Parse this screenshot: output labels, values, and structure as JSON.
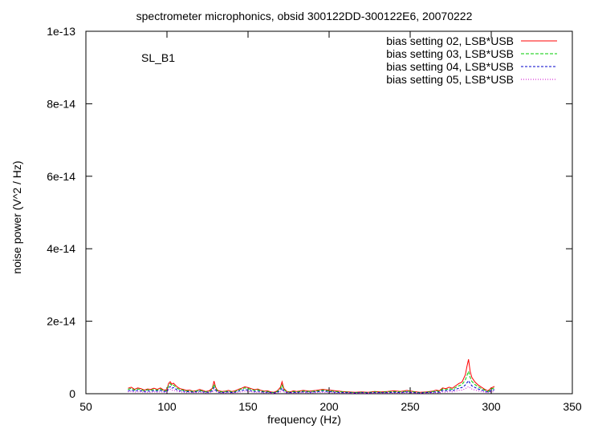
{
  "chart_data": {
    "type": "line",
    "title": "spectrometer microphonics, obsid 300122DD-300122E6, 20070222",
    "annotation": "SL_B1",
    "xlabel": "frequency (Hz)",
    "ylabel": "noise power (V^2 / Hz)",
    "xlim": [
      50,
      350
    ],
    "ylim": [
      0,
      1e-13
    ],
    "x_ticks": [
      50,
      100,
      150,
      200,
      250,
      300,
      350
    ],
    "x_tick_labels": [
      "50",
      "100",
      "150",
      "200",
      "250",
      "300",
      "350"
    ],
    "y_ticks": [
      0,
      2e-14,
      4e-14,
      6e-14,
      8e-14,
      1e-13
    ],
    "y_tick_labels": [
      "0",
      "2e-14",
      "4e-14",
      "6e-14",
      "8e-14",
      "1e-13"
    ],
    "grid": false,
    "legend_position": "top-right",
    "series": [
      {
        "name": "bias setting 02, LSB*USB",
        "color": "#ff0000",
        "x": [
          76,
          78,
          80,
          82,
          84,
          86,
          88,
          90,
          92,
          94,
          96,
          98,
          100,
          101,
          102,
          103,
          104,
          106,
          108,
          110,
          112,
          114,
          116,
          118,
          120,
          122,
          124,
          126,
          128,
          129,
          130,
          131,
          132,
          134,
          136,
          138,
          140,
          142,
          144,
          146,
          148,
          150,
          152,
          154,
          156,
          158,
          160,
          162,
          164,
          166,
          168,
          170,
          171,
          172,
          174,
          176,
          178,
          180,
          184,
          188,
          192,
          196,
          200,
          204,
          208,
          212,
          216,
          220,
          224,
          228,
          232,
          236,
          240,
          244,
          248,
          252,
          256,
          260,
          264,
          266,
          268,
          270,
          272,
          274,
          276,
          278,
          280,
          282,
          284,
          285,
          286,
          287,
          288,
          290,
          292,
          294,
          296,
          298,
          300,
          302
        ],
        "y": [
          1.5e-15,
          1.8e-15,
          1.2e-15,
          1.6e-15,
          1.4e-15,
          1e-15,
          1.3e-15,
          1.2e-15,
          1.5e-15,
          1.2e-15,
          1.6e-15,
          1e-15,
          1.1e-15,
          2.8e-15,
          3.3e-15,
          2.6e-15,
          2.9e-15,
          2e-15,
          1.4e-15,
          1.2e-15,
          9e-16,
          1e-15,
          7e-16,
          8e-16,
          1.2e-15,
          9e-16,
          6e-16,
          8e-16,
          1.5e-15,
          3.5e-15,
          1.8e-15,
          1e-15,
          8e-16,
          6e-16,
          7e-16,
          9e-16,
          6e-16,
          8e-16,
          1.2e-15,
          1.5e-15,
          1.9e-15,
          1.7e-15,
          1.4e-15,
          1.1e-15,
          1.3e-15,
          9e-16,
          7e-16,
          8e-16,
          5e-16,
          4e-16,
          8e-16,
          1.8e-15,
          3.3e-15,
          1.5e-15,
          6e-16,
          5e-16,
          8e-16,
          6e-16,
          9e-16,
          7e-16,
          9e-16,
          1.2e-15,
          1e-15,
          8e-16,
          6e-16,
          5e-16,
          4e-16,
          5e-16,
          4e-16,
          6e-16,
          5e-16,
          6e-16,
          8e-16,
          6e-16,
          9e-16,
          6e-16,
          4e-16,
          5e-16,
          7e-16,
          1e-15,
          8e-16,
          1.6e-15,
          1.4e-15,
          1.8e-15,
          1.5e-15,
          2.2e-15,
          2.8e-15,
          3.2e-15,
          5.2e-15,
          7.5e-15,
          9.5e-15,
          6.2e-15,
          4.5e-15,
          3.2e-15,
          2.4e-15,
          1.8e-15,
          1.2e-15,
          8e-16,
          1.6e-15,
          2e-15
        ]
      },
      {
        "name": "bias setting 03, LSB*USB",
        "color": "#00cc00",
        "x": [
          76,
          78,
          80,
          82,
          84,
          86,
          88,
          90,
          92,
          94,
          96,
          98,
          100,
          101,
          102,
          103,
          104,
          106,
          108,
          110,
          112,
          114,
          116,
          118,
          120,
          122,
          124,
          126,
          128,
          129,
          130,
          131,
          132,
          134,
          136,
          138,
          140,
          142,
          144,
          146,
          148,
          150,
          152,
          154,
          156,
          158,
          160,
          162,
          164,
          166,
          168,
          170,
          171,
          172,
          174,
          176,
          178,
          180,
          184,
          188,
          192,
          196,
          200,
          204,
          208,
          212,
          216,
          220,
          224,
          228,
          232,
          236,
          240,
          244,
          248,
          252,
          256,
          260,
          264,
          266,
          268,
          270,
          272,
          274,
          276,
          278,
          280,
          282,
          284,
          285,
          286,
          287,
          288,
          290,
          292,
          294,
          296,
          298,
          300,
          302
        ],
        "y": [
          1.2e-15,
          1.5e-15,
          1e-15,
          1.3e-15,
          1.2e-15,
          8e-16,
          1.1e-15,
          1e-15,
          1.2e-15,
          1e-15,
          1.3e-15,
          8e-16,
          9e-16,
          2.3e-15,
          2.8e-15,
          2.2e-15,
          2.4e-15,
          1.6e-15,
          1.1e-15,
          1e-15,
          7e-16,
          8e-16,
          6e-16,
          7e-16,
          1e-15,
          7e-16,
          5e-16,
          6e-16,
          1.2e-15,
          2.6e-15,
          1.5e-15,
          8e-16,
          6e-16,
          5e-16,
          6e-16,
          7e-16,
          5e-16,
          6e-16,
          1e-15,
          1.3e-15,
          1.6e-15,
          1.4e-15,
          1.2e-15,
          9e-16,
          1.1e-15,
          7e-16,
          6e-16,
          6e-16,
          4e-16,
          3e-16,
          6e-16,
          1.4e-15,
          2.4e-15,
          1.2e-15,
          5e-16,
          4e-16,
          6e-16,
          5e-16,
          7e-16,
          6e-16,
          7e-16,
          1e-15,
          8e-16,
          6e-16,
          5e-16,
          4e-16,
          3e-16,
          4e-16,
          3e-16,
          5e-16,
          4e-16,
          5e-16,
          6e-16,
          5e-16,
          7e-16,
          5e-16,
          3e-16,
          4e-16,
          6e-16,
          8e-16,
          6e-16,
          1.3e-15,
          1.1e-15,
          1.4e-15,
          1.2e-15,
          1.7e-15,
          2.2e-15,
          2.5e-15,
          3.8e-15,
          5e-15,
          6.2e-15,
          4.5e-15,
          3.4e-15,
          2.5e-15,
          1.9e-15,
          1.4e-15,
          1e-15,
          6e-16,
          1.3e-15,
          1.6e-15
        ]
      },
      {
        "name": "bias setting 04, LSB*USB",
        "color": "#0000cc",
        "x": [
          76,
          78,
          80,
          82,
          84,
          86,
          88,
          90,
          92,
          94,
          96,
          98,
          100,
          101,
          102,
          103,
          104,
          106,
          108,
          110,
          112,
          114,
          116,
          118,
          120,
          122,
          124,
          126,
          128,
          129,
          130,
          131,
          132,
          134,
          136,
          138,
          140,
          142,
          144,
          146,
          148,
          150,
          152,
          154,
          156,
          158,
          160,
          162,
          164,
          166,
          168,
          170,
          171,
          172,
          174,
          176,
          178,
          180,
          184,
          188,
          192,
          196,
          200,
          204,
          208,
          212,
          216,
          220,
          224,
          228,
          232,
          236,
          240,
          244,
          248,
          252,
          256,
          260,
          264,
          266,
          268,
          270,
          272,
          274,
          276,
          278,
          280,
          282,
          284,
          285,
          286,
          287,
          288,
          290,
          292,
          294,
          296,
          298,
          300,
          302
        ],
        "y": [
          8e-16,
          1e-15,
          7e-16,
          9e-16,
          8e-16,
          6e-16,
          7e-16,
          7e-16,
          8e-16,
          7e-16,
          9e-16,
          6e-16,
          6e-16,
          1.6e-15,
          2e-15,
          1.5e-15,
          1.7e-15,
          1.1e-15,
          8e-16,
          7e-16,
          5e-16,
          6e-16,
          4e-16,
          5e-16,
          7e-16,
          5e-16,
          4e-16,
          4e-16,
          8e-16,
          1.7e-15,
          1e-15,
          6e-16,
          4e-16,
          3e-16,
          4e-16,
          5e-16,
          3e-16,
          4e-16,
          7e-16,
          9e-16,
          1.1e-15,
          1e-15,
          8e-16,
          6e-16,
          7e-16,
          5e-16,
          4e-16,
          4e-16,
          3e-16,
          2e-16,
          4e-16,
          9e-16,
          1.6e-15,
          8e-16,
          3e-16,
          3e-16,
          4e-16,
          3e-16,
          5e-16,
          4e-16,
          5e-16,
          7e-16,
          6e-16,
          4e-16,
          3e-16,
          3e-16,
          2e-16,
          3e-16,
          2e-16,
          3e-16,
          3e-16,
          3e-16,
          4e-16,
          3e-16,
          5e-16,
          3e-16,
          2e-16,
          3e-16,
          4e-16,
          5e-16,
          4e-16,
          9e-16,
          8e-16,
          1e-15,
          8e-16,
          1.2e-15,
          1.5e-15,
          1.7e-15,
          2.4e-15,
          3e-15,
          3.6e-15,
          2.8e-15,
          2.2e-15,
          1.7e-15,
          1.3e-15,
          1e-15,
          7e-16,
          4e-16,
          9e-16,
          1.1e-15
        ]
      },
      {
        "name": "bias setting 05, LSB*USB",
        "color": "#cc00cc",
        "x": [
          76,
          78,
          80,
          82,
          84,
          86,
          88,
          90,
          92,
          94,
          96,
          98,
          100,
          101,
          102,
          103,
          104,
          106,
          108,
          110,
          112,
          114,
          116,
          118,
          120,
          122,
          124,
          126,
          128,
          129,
          130,
          131,
          132,
          134,
          136,
          138,
          140,
          142,
          144,
          146,
          148,
          150,
          152,
          154,
          156,
          158,
          160,
          162,
          164,
          166,
          168,
          170,
          171,
          172,
          174,
          176,
          178,
          180,
          184,
          188,
          192,
          196,
          200,
          204,
          208,
          212,
          216,
          220,
          224,
          228,
          232,
          236,
          240,
          244,
          248,
          252,
          256,
          260,
          264,
          266,
          268,
          270,
          272,
          274,
          276,
          278,
          280,
          282,
          284,
          285,
          286,
          287,
          288,
          290,
          292,
          294,
          296,
          298,
          300,
          302
        ],
        "y": [
          5e-16,
          6e-16,
          4e-16,
          5e-16,
          5e-16,
          4e-16,
          4e-16,
          4e-16,
          5e-16,
          4e-16,
          5e-16,
          4e-16,
          4e-16,
          1e-15,
          1.2e-15,
          9e-16,
          1e-15,
          7e-16,
          5e-16,
          4e-16,
          3e-16,
          4e-16,
          3e-16,
          3e-16,
          4e-16,
          3e-16,
          2e-16,
          3e-16,
          5e-16,
          1e-15,
          6e-16,
          4e-16,
          3e-16,
          2e-16,
          2e-16,
          3e-16,
          2e-16,
          3e-16,
          4e-16,
          5e-16,
          7e-16,
          6e-16,
          5e-16,
          4e-16,
          4e-16,
          3e-16,
          2e-16,
          3e-16,
          2e-16,
          1e-16,
          2e-16,
          5e-16,
          9e-16,
          5e-16,
          2e-16,
          2e-16,
          2e-16,
          2e-16,
          3e-16,
          2e-16,
          3e-16,
          4e-16,
          3e-16,
          2e-16,
          2e-16,
          2e-16,
          1e-16,
          2e-16,
          1e-16,
          2e-16,
          2e-16,
          2e-16,
          2e-16,
          2e-16,
          3e-16,
          2e-16,
          1e-16,
          2e-16,
          2e-16,
          3e-16,
          2e-16,
          5e-16,
          4e-16,
          6e-16,
          5e-16,
          7e-16,
          9e-16,
          1e-15,
          1.4e-15,
          1.7e-15,
          2e-15,
          1.6e-15,
          1.3e-15,
          1e-15,
          8e-16,
          6e-16,
          4e-16,
          3e-16,
          5e-16,
          6e-16
        ]
      }
    ]
  }
}
